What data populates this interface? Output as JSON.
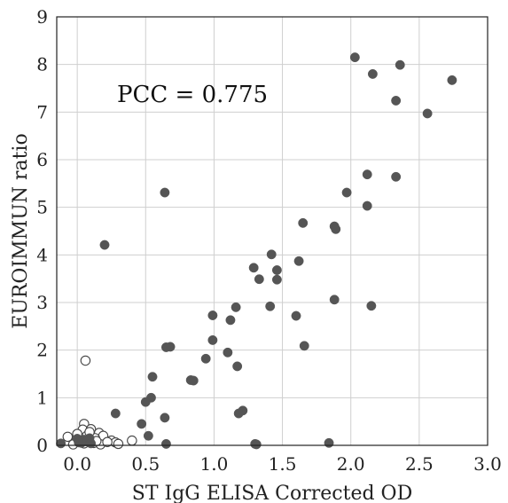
{
  "chart_data": {
    "type": "scatter",
    "title": "",
    "xlabel": "ST IgG ELISA Corrected OD",
    "ylabel": "EUROIMMUN ratio",
    "xlim": [
      -0.15,
      3.0
    ],
    "ylim": [
      0,
      9
    ],
    "xticks": [
      0.0,
      0.5,
      1.0,
      1.5,
      2.0,
      2.5,
      3.0
    ],
    "xtick_labels": [
      "0.0",
      "0.5",
      "1.0",
      "1.5",
      "2.0",
      "2.5",
      "3.0"
    ],
    "yticks": [
      0,
      1,
      2,
      3,
      4,
      5,
      6,
      7,
      8,
      9
    ],
    "ytick_labels": [
      "0",
      "1",
      "2",
      "3",
      "4",
      "5",
      "6",
      "7",
      "8",
      "9"
    ],
    "grid": true,
    "annotation": "PCC = 0.775",
    "colors": {
      "filled": "#555555",
      "open_edge": "#444444"
    },
    "series": [
      {
        "marker": "filled",
        "points": [
          [
            2.03,
            8.15
          ],
          [
            2.36,
            7.99
          ],
          [
            2.16,
            7.8
          ],
          [
            2.74,
            7.67
          ],
          [
            2.33,
            7.24
          ],
          [
            2.56,
            6.97
          ],
          [
            2.12,
            5.69
          ],
          [
            2.33,
            5.64
          ],
          [
            0.64,
            5.31
          ],
          [
            1.97,
            5.31
          ],
          [
            2.12,
            5.03
          ],
          [
            1.65,
            4.67
          ],
          [
            1.88,
            4.6
          ],
          [
            1.89,
            4.54
          ],
          [
            0.2,
            4.21
          ],
          [
            1.42,
            4.01
          ],
          [
            1.62,
            3.87
          ],
          [
            1.29,
            3.73
          ],
          [
            1.46,
            3.68
          ],
          [
            1.33,
            3.49
          ],
          [
            1.46,
            3.48
          ],
          [
            1.88,
            3.06
          ],
          [
            2.15,
            2.93
          ],
          [
            1.41,
            2.92
          ],
          [
            1.16,
            2.9
          ],
          [
            0.99,
            2.73
          ],
          [
            1.6,
            2.72
          ],
          [
            1.12,
            2.63
          ],
          [
            0.99,
            2.21
          ],
          [
            1.66,
            2.09
          ],
          [
            0.68,
            2.07
          ],
          [
            0.65,
            2.06
          ],
          [
            1.1,
            1.95
          ],
          [
            0.94,
            1.82
          ],
          [
            1.17,
            1.66
          ],
          [
            0.55,
            1.44
          ],
          [
            0.83,
            1.37
          ],
          [
            0.85,
            1.36
          ],
          [
            0.54,
            1.0
          ],
          [
            0.5,
            0.91
          ],
          [
            1.21,
            0.73
          ],
          [
            1.18,
            0.67
          ],
          [
            0.28,
            0.67
          ],
          [
            0.64,
            0.58
          ],
          [
            0.47,
            0.45
          ],
          [
            0.52,
            0.2
          ],
          [
            0.09,
            0.15
          ],
          [
            0.05,
            0.12
          ],
          [
            0.02,
            0.1
          ],
          [
            0.0,
            0.14
          ],
          [
            0.07,
            0.08
          ],
          [
            0.03,
            0.05
          ],
          [
            1.3,
            0.03
          ],
          [
            1.31,
            0.02
          ],
          [
            1.84,
            0.05
          ],
          [
            0.65,
            0.03
          ],
          [
            -0.12,
            0.04
          ],
          [
            0.01,
            0.06
          ],
          [
            0.1,
            0.04
          ]
        ]
      },
      {
        "marker": "open",
        "points": [
          [
            0.06,
            1.78
          ],
          [
            0.05,
            0.45
          ],
          [
            0.04,
            0.33
          ],
          [
            0.1,
            0.34
          ],
          [
            0.16,
            0.26
          ],
          [
            0.19,
            0.2
          ],
          [
            -0.07,
            0.18
          ],
          [
            0.0,
            0.24
          ],
          [
            0.13,
            0.15
          ],
          [
            0.08,
            0.12
          ],
          [
            0.02,
            0.1
          ],
          [
            -0.01,
            0.08
          ],
          [
            0.25,
            0.1
          ],
          [
            0.28,
            0.06
          ],
          [
            0.4,
            0.1
          ],
          [
            0.12,
            0.05
          ],
          [
            0.05,
            0.04
          ],
          [
            0.07,
            0.2
          ],
          [
            0.17,
            0.02
          ],
          [
            0.3,
            0.03
          ],
          [
            -0.03,
            0.02
          ],
          [
            0.22,
            0.07
          ],
          [
            0.14,
            0.09
          ],
          [
            0.09,
            0.28
          ]
        ]
      }
    ]
  }
}
